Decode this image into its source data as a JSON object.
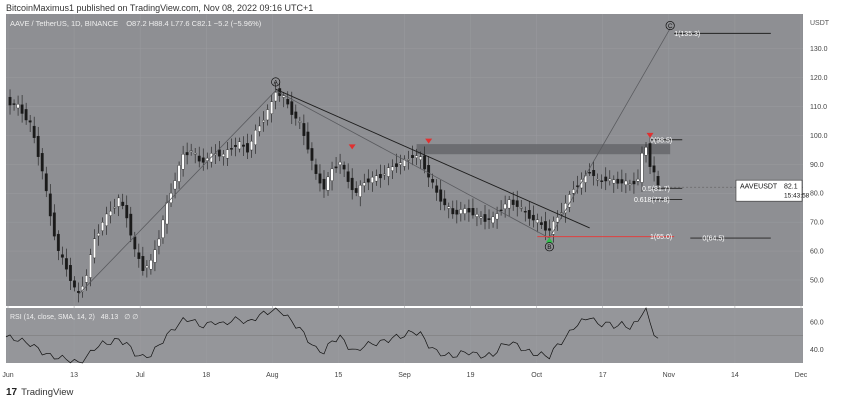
{
  "header": {
    "published": "BitcoinMaximus1 published on TradingView.com, Nov 08, 2022 09:16 UTC+1"
  },
  "branding": {
    "logo_glyph": "17",
    "name": "TradingView"
  },
  "chart_data": {
    "type": "candlestick",
    "legend": {
      "symbol": "AAVE / TetherUS, 1D, BINANCE",
      "ohlc": "O87.2 H88.4 L77.6 C82.1 −5.2 (−5.96%)"
    },
    "y_axis": {
      "unit_label": "USDT",
      "ticks": [
        130.0,
        120.0,
        110.0,
        100.0,
        90.0,
        80.0,
        70.0,
        60.0,
        50.0
      ],
      "range": [
        41,
        142
      ]
    },
    "x_axis": {
      "ticks": [
        "Jun",
        "13",
        "Jul",
        "18",
        "Aug",
        "15",
        "Sep",
        "19",
        "Oct",
        "17",
        "Nov",
        "14",
        "Dec"
      ]
    },
    "last_price": {
      "symbol": "AAVEUSDT",
      "value": "82.1",
      "countdown": "15:43:58",
      "level": 82.1
    },
    "wave_labels": [
      {
        "label": "A",
        "day": 67,
        "price": 118.5
      },
      {
        "label": "B",
        "day": 135,
        "price": 61.5
      },
      {
        "label": "C",
        "day": 165,
        "price": 138
      }
    ],
    "annotations": [
      {
        "text": "1(135.3)",
        "level": 135.3
      },
      {
        "text": "0(98.5)",
        "level": 98.5
      },
      {
        "text": "0.5(81.7)",
        "level": 81.7
      },
      {
        "text": "0.618(77.8)",
        "level": 77.8
      },
      {
        "text": "1(65.0)",
        "level": 65.0
      },
      {
        "text": "0(64.5)",
        "level": 64.5
      }
    ],
    "resistance_zone": [
      93.5,
      97
    ],
    "descending_trendline": [
      [
        67,
        116
      ],
      [
        145,
        68
      ]
    ],
    "price_path": [
      [
        0,
        112
      ],
      [
        3,
        110
      ],
      [
        6,
        104
      ],
      [
        9,
        88
      ],
      [
        11,
        72
      ],
      [
        13,
        60
      ],
      [
        15,
        54
      ],
      [
        17,
        47
      ],
      [
        18,
        45
      ],
      [
        20,
        52
      ],
      [
        22,
        64
      ],
      [
        24,
        70
      ],
      [
        26,
        74
      ],
      [
        28,
        78
      ],
      [
        30,
        72
      ],
      [
        32,
        60
      ],
      [
        34,
        54
      ],
      [
        36,
        56
      ],
      [
        38,
        65
      ],
      [
        40,
        76
      ],
      [
        42,
        85
      ],
      [
        44,
        93
      ],
      [
        46,
        95
      ],
      [
        48,
        91
      ],
      [
        50,
        92
      ],
      [
        52,
        94
      ],
      [
        54,
        93
      ],
      [
        56,
        96
      ],
      [
        58,
        97
      ],
      [
        60,
        95
      ],
      [
        62,
        101
      ],
      [
        64,
        106
      ],
      [
        66,
        111
      ],
      [
        67,
        115.5
      ],
      [
        69,
        113
      ],
      [
        71,
        108
      ],
      [
        73,
        104
      ],
      [
        75,
        96
      ],
      [
        77,
        86
      ],
      [
        79,
        82
      ],
      [
        81,
        88
      ],
      [
        83,
        91
      ],
      [
        85,
        84
      ],
      [
        87,
        80
      ],
      [
        89,
        84
      ],
      [
        91,
        85
      ],
      [
        93,
        86
      ],
      [
        95,
        88
      ],
      [
        97,
        90
      ],
      [
        99,
        91
      ],
      [
        101,
        93
      ],
      [
        103,
        92
      ],
      [
        105,
        86
      ],
      [
        107,
        80
      ],
      [
        109,
        76
      ],
      [
        111,
        73
      ],
      [
        113,
        74
      ],
      [
        115,
        74
      ],
      [
        117,
        72
      ],
      [
        119,
        71
      ],
      [
        121,
        71
      ],
      [
        123,
        75
      ],
      [
        125,
        77
      ],
      [
        127,
        76
      ],
      [
        129,
        73
      ],
      [
        131,
        71
      ],
      [
        133,
        69
      ],
      [
        135,
        67
      ],
      [
        137,
        72
      ],
      [
        139,
        76
      ],
      [
        141,
        82
      ],
      [
        143,
        84
      ],
      [
        145,
        88
      ],
      [
        147,
        84
      ],
      [
        149,
        85
      ],
      [
        151,
        84
      ],
      [
        153,
        84
      ],
      [
        155,
        83
      ],
      [
        157,
        85
      ],
      [
        158,
        93
      ],
      [
        159,
        96
      ],
      [
        160,
        90
      ],
      [
        161,
        87
      ],
      [
        162,
        82.1
      ]
    ],
    "rsi": {
      "label": "RSI (14, close, SMA, 14, 2)",
      "value": "48.13",
      "extra": "∅ ∅",
      "ticks": [
        60.0,
        40.0
      ],
      "band": [
        30,
        70
      ],
      "range": [
        30,
        70
      ],
      "values": [
        [
          0,
          49
        ],
        [
          3,
          47
        ],
        [
          6,
          44
        ],
        [
          9,
          38
        ],
        [
          11,
          35
        ],
        [
          13,
          34
        ],
        [
          15,
          33
        ],
        [
          17,
          31
        ],
        [
          18,
          30
        ],
        [
          20,
          34
        ],
        [
          22,
          41
        ],
        [
          24,
          44
        ],
        [
          26,
          45
        ],
        [
          28,
          47
        ],
        [
          30,
          44
        ],
        [
          32,
          37
        ],
        [
          34,
          34
        ],
        [
          36,
          36
        ],
        [
          38,
          43
        ],
        [
          40,
          50
        ],
        [
          42,
          56
        ],
        [
          44,
          61
        ],
        [
          46,
          62
        ],
        [
          48,
          57
        ],
        [
          50,
          58
        ],
        [
          52,
          60
        ],
        [
          54,
          58
        ],
        [
          56,
          61
        ],
        [
          58,
          62
        ],
        [
          60,
          59
        ],
        [
          62,
          63
        ],
        [
          64,
          66
        ],
        [
          66,
          68
        ],
        [
          67,
          70
        ],
        [
          69,
          66
        ],
        [
          71,
          60
        ],
        [
          73,
          55
        ],
        [
          75,
          47
        ],
        [
          77,
          40
        ],
        [
          79,
          38
        ],
        [
          81,
          46
        ],
        [
          83,
          49
        ],
        [
          85,
          42
        ],
        [
          87,
          38
        ],
        [
          89,
          43
        ],
        [
          91,
          44
        ],
        [
          93,
          45
        ],
        [
          95,
          47
        ],
        [
          97,
          49
        ],
        [
          99,
          50
        ],
        [
          101,
          53
        ],
        [
          103,
          51
        ],
        [
          105,
          43
        ],
        [
          107,
          38
        ],
        [
          109,
          36
        ],
        [
          111,
          35
        ],
        [
          113,
          37
        ],
        [
          115,
          38
        ],
        [
          117,
          36
        ],
        [
          119,
          35
        ],
        [
          121,
          36
        ],
        [
          123,
          42
        ],
        [
          125,
          45
        ],
        [
          127,
          43
        ],
        [
          129,
          39
        ],
        [
          131,
          37
        ],
        [
          133,
          36
        ],
        [
          135,
          35
        ],
        [
          137,
          43
        ],
        [
          139,
          48
        ],
        [
          141,
          56
        ],
        [
          143,
          60
        ],
        [
          145,
          64
        ],
        [
          147,
          58
        ],
        [
          149,
          59
        ],
        [
          151,
          57
        ],
        [
          153,
          58
        ],
        [
          155,
          56
        ],
        [
          157,
          60
        ],
        [
          158,
          67
        ],
        [
          159,
          69
        ],
        [
          160,
          58
        ],
        [
          161,
          52
        ],
        [
          162,
          48
        ]
      ]
    },
    "colors": {
      "panel_bg": "#8e8f93",
      "grid": "#9a9b9f",
      "candle_up": "#ffffff",
      "candle_down": "#1a1a1a",
      "fib_line": "#222222",
      "target_line": "#e04040",
      "marker_red": "#e03030",
      "marker_green": "#2fbf4a",
      "rsi_band": "#9c9da1"
    }
  }
}
